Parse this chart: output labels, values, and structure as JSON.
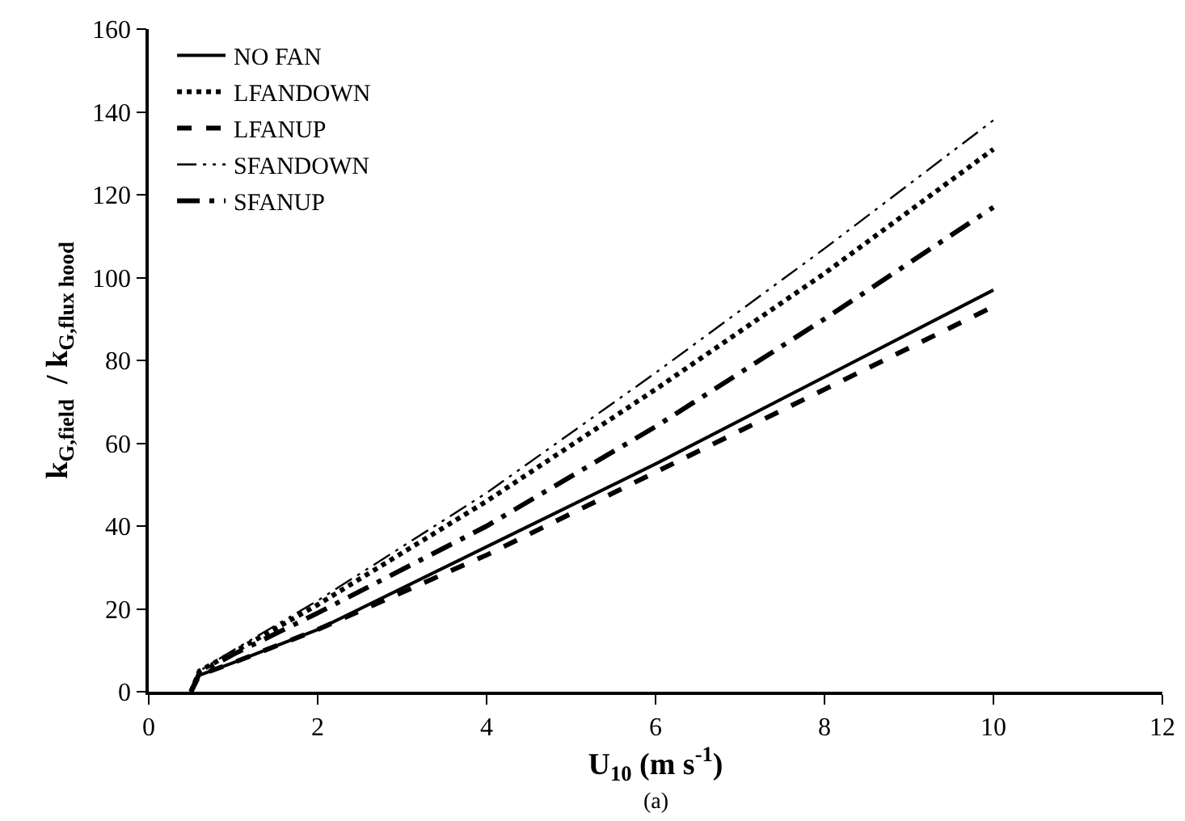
{
  "chart_data": {
    "type": "line",
    "xlabel": "U$_{10}$ (m s$^{-1}$)",
    "ylabel": "k$_{G,field}$  / k$_{G,flux hood}$",
    "annotations": [
      "(a)"
    ],
    "x": [
      0.5,
      0.6,
      1,
      2,
      4,
      6,
      8,
      10
    ],
    "series": [
      {
        "name": "NO FAN",
        "color": "#000000",
        "line_style": "solid",
        "values": [
          0,
          4,
          7,
          15,
          35,
          55,
          76,
          97
        ]
      },
      {
        "name": "LFANDOWN",
        "color": "#000000",
        "line_style": "dotted",
        "values": [
          0,
          5,
          9.5,
          21,
          46,
          73,
          101,
          131
        ]
      },
      {
        "name": "LFANUP",
        "color": "#000000",
        "line_style": "dashed",
        "values": [
          0,
          4,
          7,
          15,
          33,
          53,
          73,
          93
        ]
      },
      {
        "name": "SFANDOWN",
        "color": "#000000",
        "line_style": "dashdotdot",
        "values": [
          0,
          5,
          10,
          22,
          48,
          77,
          107,
          138
        ]
      },
      {
        "name": "SFANUP",
        "color": "#000000",
        "line_style": "dashdot",
        "values": [
          0,
          4.5,
          9,
          19,
          40,
          64,
          90,
          117
        ]
      }
    ],
    "xlim": [
      0,
      12
    ],
    "xticks": [
      0,
      2,
      4,
      6,
      8,
      10,
      12
    ],
    "ylim": [
      0,
      160
    ],
    "yticks": [
      0,
      20,
      40,
      60,
      80,
      100,
      120,
      140,
      160
    ],
    "grid": false,
    "legend": "top left",
    "marker": "none"
  }
}
